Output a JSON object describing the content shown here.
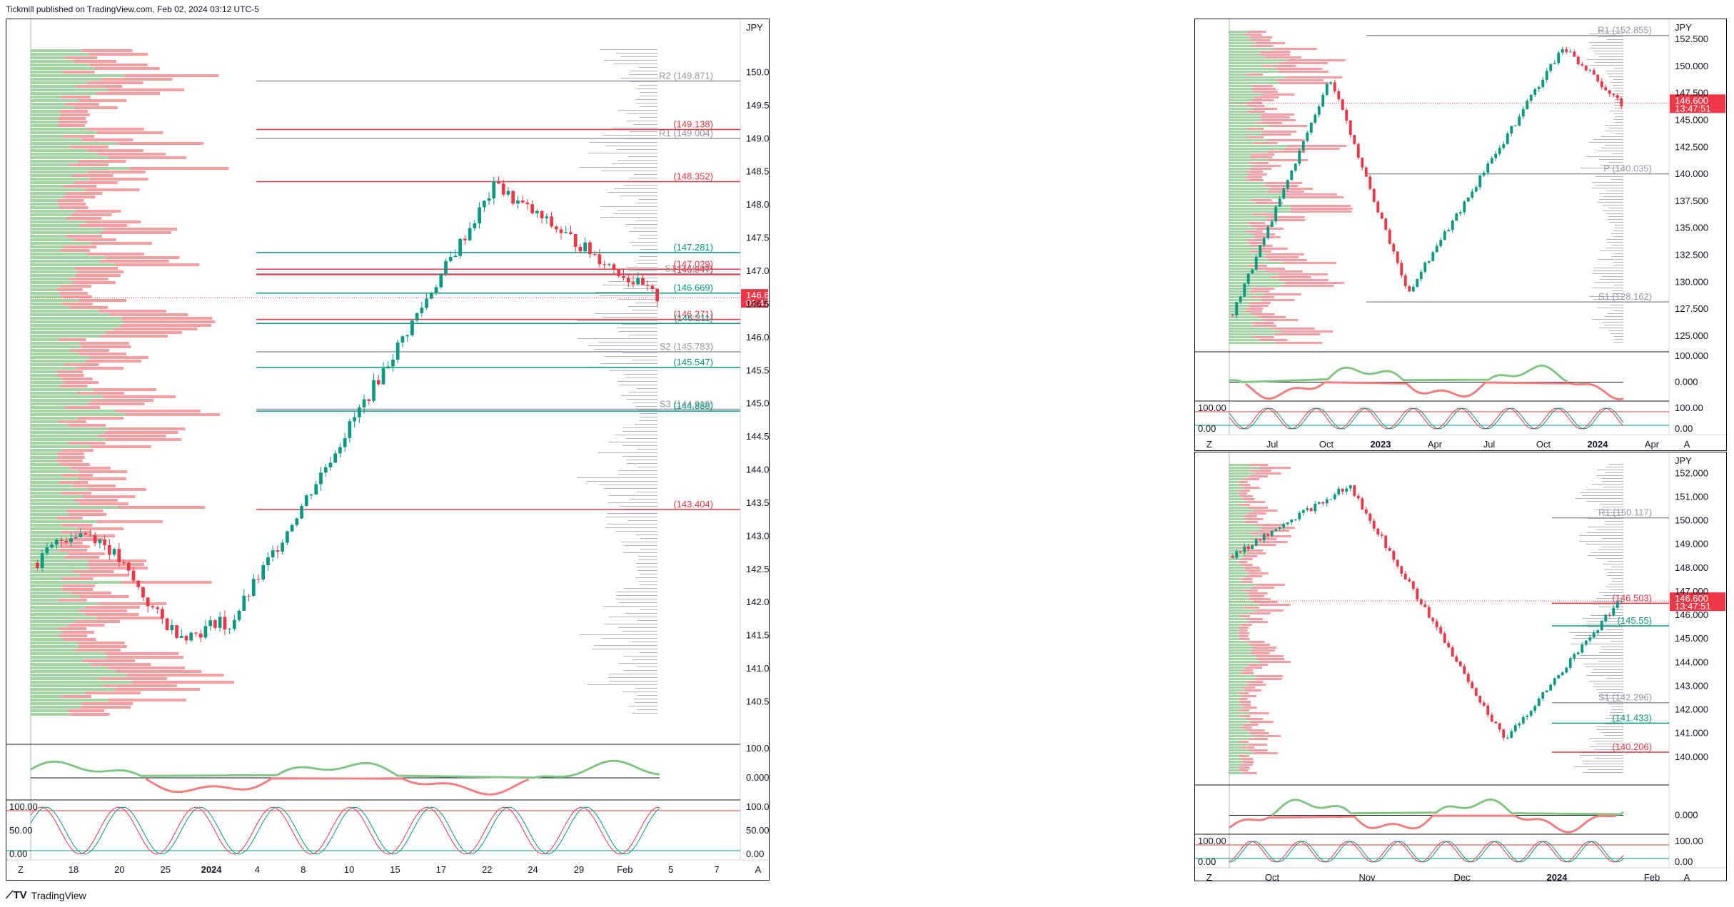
{
  "header": {
    "publisher": "Tickmill published on TradingView.com, Feb 02, 2024 03:12 UTC-5"
  },
  "footer": {
    "brand": "TradingView"
  },
  "chart_data": [
    {
      "type": "candlestick",
      "panel": "main",
      "currency": "JPY",
      "price_label": "146.600",
      "countdown": "01:47:52",
      "y_ticks": [
        "150.000",
        "149.500",
        "149.000",
        "148.500",
        "148.000",
        "147.500",
        "147.000",
        "146.500",
        "146.000",
        "145.500",
        "145.000",
        "144.500",
        "144.000",
        "143.500",
        "143.000",
        "142.500",
        "142.000",
        "141.500",
        "141.000",
        "140.500"
      ],
      "x_ticks": [
        "18",
        "20",
        "25",
        "2024",
        "4",
        "8",
        "10",
        "15",
        "17",
        "22",
        "24",
        "29",
        "Feb",
        "5",
        "7"
      ],
      "ylim": [
        140.3,
        150.35
      ],
      "levels": [
        {
          "label": "R2 (149.871)",
          "value": 149.871
        },
        {
          "label": "(149.138)",
          "value": 149.138
        },
        {
          "label": "R1 (149.004)",
          "value": 149.004
        },
        {
          "label": "(148.352)",
          "value": 148.352
        },
        {
          "label": "(147.281)",
          "value": 147.281
        },
        {
          "label": "(147.029)",
          "value": 147.029
        },
        {
          "label": "S1 (146.96)",
          "value": 146.96
        },
        {
          "label": "(146.947)",
          "value": 146.947
        },
        {
          "label": "(146.669)",
          "value": 146.669
        },
        {
          "label": "(146.271)",
          "value": 146.271
        },
        {
          "label": "(146.211)",
          "value": 146.211
        },
        {
          "label": "S2 (145.783)",
          "value": 145.783
        },
        {
          "label": "(145.547)",
          "value": 145.547
        },
        {
          "label": "S3 (144.916)",
          "value": 144.916
        },
        {
          "label": "(144.888)",
          "value": 144.888
        },
        {
          "label": "(143.404)",
          "value": 143.404
        }
      ],
      "oscillator": {
        "ticks": [
          "100.000",
          "0.000"
        ]
      },
      "stochastic": {
        "ticks": [
          "100.00",
          "50.00",
          "0.00"
        ]
      }
    },
    {
      "type": "candlestick",
      "panel": "top-right",
      "currency": "JPY",
      "price_label": "146.600",
      "countdown": "13:47:51",
      "y_ticks": [
        "152.500",
        "150.000",
        "147.500",
        "145.000",
        "142.500",
        "140.000",
        "137.500",
        "135.000",
        "132.500",
        "130.000",
        "127.500",
        "125.000"
      ],
      "x_ticks": [
        "Jul",
        "Oct",
        "2023",
        "Apr",
        "Jul",
        "Oct",
        "2024",
        "Apr"
      ],
      "ylim": [
        124.2,
        153.3
      ],
      "levels": [
        {
          "label": "R1 (152.855)",
          "value": 152.855
        },
        {
          "label": "P (140.035)",
          "value": 140.035
        },
        {
          "label": "S1 (128.162)",
          "value": 128.162
        }
      ],
      "oscillator": {
        "ticks": [
          "100.000",
          "0.000"
        ]
      },
      "stochastic": {
        "ticks": [
          "100.00",
          "0.00"
        ]
      }
    },
    {
      "type": "candlestick",
      "panel": "bottom-right",
      "currency": "JPY",
      "price_label": "146.600",
      "countdown": "13:47:51",
      "y_ticks": [
        "152.000",
        "151.000",
        "150.000",
        "149.000",
        "148.000",
        "147.000",
        "146.000",
        "145.000",
        "144.000",
        "143.000",
        "142.000",
        "141.000",
        "140.000"
      ],
      "x_ticks": [
        "Oct",
        "Nov",
        "Dec",
        "2024",
        "Feb"
      ],
      "ylim": [
        139.3,
        152.4
      ],
      "levels": [
        {
          "label": "R1 (150.117)",
          "value": 150.117
        },
        {
          "label": "(146.503)",
          "value": 146.503
        },
        {
          "label": "(145.55)",
          "value": 145.55
        },
        {
          "label": "S1 (142.296)",
          "value": 142.296
        },
        {
          "label": "(141.433)",
          "value": 141.433
        },
        {
          "label": "(140.206)",
          "value": 140.206
        }
      ],
      "oscillator": {
        "ticks": [
          "0.000"
        ]
      },
      "stochastic": {
        "ticks": [
          "100.00",
          "0.00"
        ]
      }
    }
  ]
}
